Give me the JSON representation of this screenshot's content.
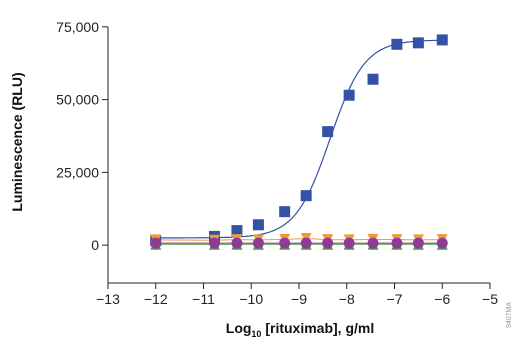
{
  "chart_data": {
    "type": "scatter",
    "title": "",
    "xlabel_base": "Log",
    "xlabel_sub": "10",
    "xlabel_rest": " [rituximab], g/ml",
    "ylabel": "Luminescence (RLU)",
    "xlim": [
      -13,
      -5
    ],
    "ylim": [
      -13000,
      77000
    ],
    "x_ticks": [
      -13,
      -12,
      -11,
      -10,
      -9,
      -8,
      -7,
      -6,
      -5
    ],
    "x_tick_labels": [
      "−13",
      "−12",
      "−11",
      "−10",
      "−9",
      "−8",
      "−7",
      "−6",
      "−5"
    ],
    "y_ticks": [
      0,
      25000,
      50000,
      75000
    ],
    "y_tick_labels": [
      "0",
      "25,000",
      "50,000",
      "75,000"
    ],
    "grid": false,
    "legend": "none",
    "side_code": "9407MA",
    "series": [
      {
        "marker": "square",
        "color": "#3352a6",
        "x": [
          -12,
          -10.77,
          -10.3,
          -9.85,
          -9.3,
          -8.85,
          -8.4,
          -7.95,
          -7.45,
          -6.95,
          -6.5,
          -6
        ],
        "y": [
          1500,
          3000,
          5000,
          7000,
          11500,
          17000,
          39000,
          51500,
          57000,
          69000,
          69500,
          70500
        ],
        "fit": {
          "bottom": 2500,
          "top": 70500,
          "log_ec50": -8.35,
          "hill": 1.2
        }
      },
      {
        "marker": "triangle-down",
        "color": "#f29a3a",
        "x": [
          -12,
          -10.77,
          -10.3,
          -9.85,
          -9.3,
          -8.85,
          -8.4,
          -7.95,
          -7.45,
          -6.95,
          -6.5,
          -6
        ],
        "y": [
          1800,
          1700,
          1900,
          1800,
          2000,
          2300,
          1900,
          1800,
          2000,
          1900,
          1800,
          1900
        ]
      },
      {
        "marker": "triangle-up",
        "color": "#4a9a4a",
        "x": [
          -12,
          -10.77,
          -10.3,
          -9.85,
          -9.3,
          -8.85,
          -8.4,
          -7.95,
          -7.45,
          -6.95,
          -6.5,
          -6
        ],
        "y": [
          300,
          300,
          300,
          300,
          300,
          300,
          300,
          300,
          300,
          300,
          300,
          300
        ]
      },
      {
        "marker": "circle",
        "color": "#8e3a96",
        "x": [
          -12,
          -10.77,
          -10.3,
          -9.85,
          -9.3,
          -8.85,
          -8.4,
          -7.95,
          -7.45,
          -6.95,
          -6.5,
          -6
        ],
        "y": [
          700,
          700,
          700,
          700,
          700,
          700,
          700,
          700,
          700,
          700,
          700,
          700
        ]
      }
    ]
  }
}
